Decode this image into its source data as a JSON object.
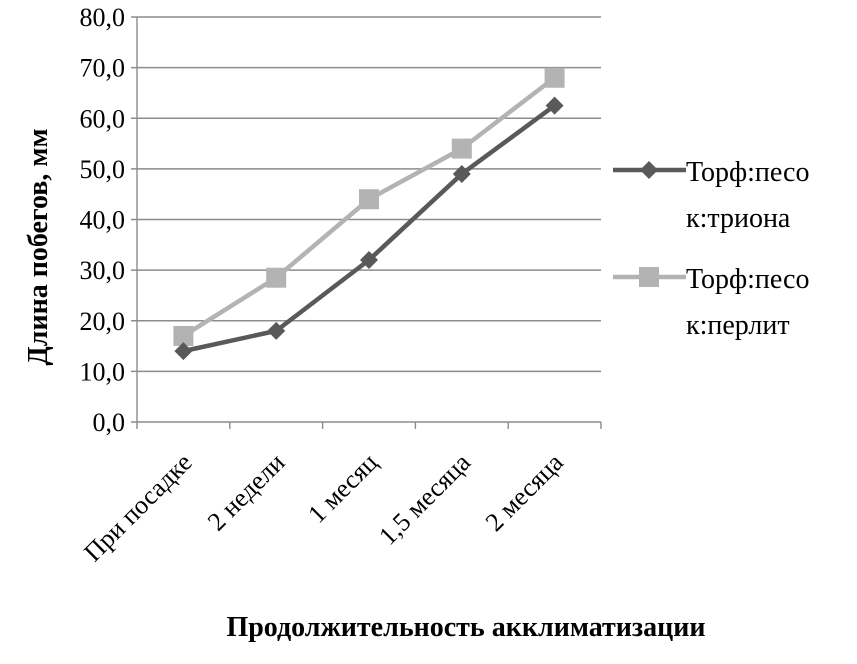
{
  "chart_data": {
    "type": "line",
    "title": "",
    "xlabel": "Продолжительность акклиматизации",
    "ylabel": "Длина побегов, мм",
    "categories": [
      "При посадке",
      "2 недели",
      "1 месяц",
      "1,5 месяца",
      "2 месяца"
    ],
    "ylim": [
      0,
      80
    ],
    "yticks": [
      "0,0",
      "10,0",
      "20,0",
      "30,0",
      "40,0",
      "50,0",
      "60,0",
      "70,0",
      "80,0"
    ],
    "grid": true,
    "legend_position": "right",
    "series": [
      {
        "name_lines": [
          "Торф:песо",
          "к:триона"
        ],
        "values": [
          14.0,
          18.0,
          32.0,
          49.0,
          62.5
        ],
        "color": "#595959",
        "marker": "diamond"
      },
      {
        "name_lines": [
          "Торф:песо",
          "к:перлит"
        ],
        "values": [
          17.0,
          28.5,
          44.0,
          54.0,
          68.0
        ],
        "color": "#b3b3b3",
        "marker": "square"
      }
    ]
  }
}
